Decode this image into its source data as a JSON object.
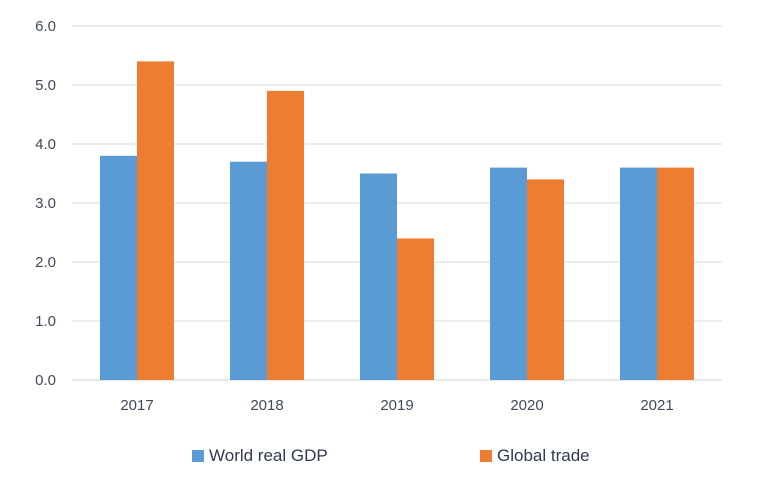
{
  "chart_data": {
    "type": "bar",
    "title": "",
    "xlabel": "",
    "ylabel": "",
    "categories": [
      "2017",
      "2018",
      "2019",
      "2020",
      "2021"
    ],
    "series": [
      {
        "name": "World real GDP",
        "color": "#5b9bd5",
        "values": [
          3.8,
          3.7,
          3.5,
          3.6,
          3.6
        ]
      },
      {
        "name": "Global trade",
        "color": "#ed7d31",
        "values": [
          5.4,
          4.9,
          2.4,
          3.4,
          3.6
        ]
      }
    ],
    "ylim": [
      0,
      6
    ],
    "yticks": [
      "0.0",
      "1.0",
      "2.0",
      "3.0",
      "4.0",
      "5.0",
      "6.0"
    ],
    "grid": true,
    "legend_position": "bottom"
  }
}
